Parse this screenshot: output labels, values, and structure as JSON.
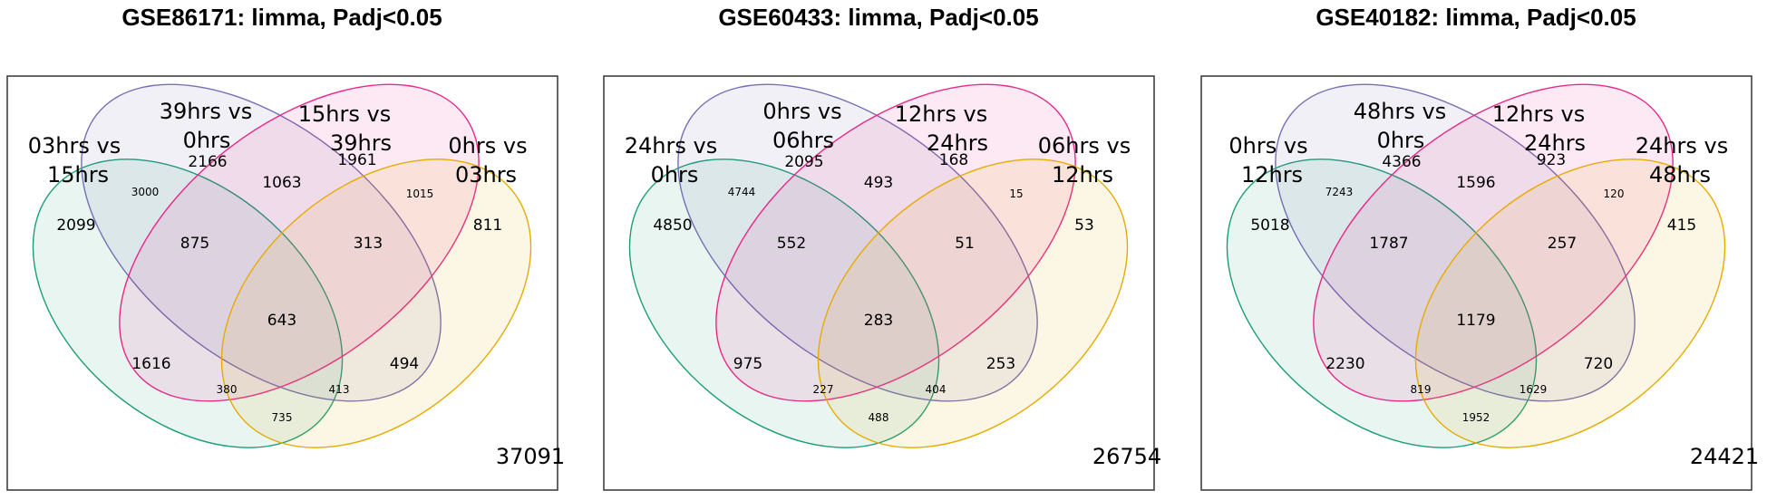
{
  "colors": {
    "set1": "#1b9e77",
    "set2": "#7570b3",
    "set3": "#e7298a",
    "set4": "#e6ab02"
  },
  "panels": [
    {
      "title": "GSE86171: limma, Padj<0.05",
      "labels": {
        "a1": "03hrs vs",
        "a2": "15hrs",
        "b1": "39hrs vs",
        "b2": "0hrs",
        "c1": "15hrs vs",
        "c2": "39hrs",
        "d1": "0hrs vs",
        "d2": "03hrs"
      },
      "counts": {
        "A": "2099",
        "AB": "3000",
        "B": "2166",
        "BC": "1063",
        "C": "1961",
        "CD": "1015",
        "D": "811",
        "ABC": "875",
        "BCD": "313",
        "ABCD": "643",
        "AC": "1616",
        "ACD": "380",
        "ABD": "413",
        "BD": "494",
        "AD": "735"
      },
      "outside": "37091"
    },
    {
      "title": "GSE60433: limma, Padj<0.05",
      "labels": {
        "a1": "24hrs vs",
        "a2": "0hrs",
        "b1": "0hrs vs",
        "b2": "06hrs",
        "c1": "12hrs vs",
        "c2": "24hrs",
        "d1": "06hrs vs",
        "d2": "12hrs"
      },
      "counts": {
        "A": "4850",
        "AB": "4744",
        "B": "2095",
        "BC": "493",
        "C": "168",
        "CD": "15",
        "D": "53",
        "ABC": "552",
        "BCD": "51",
        "ABCD": "283",
        "AC": "975",
        "ACD": "227",
        "ABD": "404",
        "BD": "253",
        "AD": "488"
      },
      "outside": "26754"
    },
    {
      "title": "GSE40182: limma, Padj<0.05",
      "labels": {
        "a1": "0hrs vs",
        "a2": "12hrs",
        "b1": "48hrs vs",
        "b2": "0hrs",
        "c1": "12hrs vs",
        "c2": "24hrs",
        "d1": "24hrs vs",
        "d2": "48hrs"
      },
      "counts": {
        "A": "5018",
        "AB": "7243",
        "B": "4366",
        "BC": "1596",
        "C": "923",
        "CD": "120",
        "D": "415",
        "ABC": "1787",
        "BCD": "257",
        "ABCD": "1179",
        "AC": "2230",
        "ACD": "819",
        "ABD": "1629",
        "BD": "720",
        "AD": "1952"
      },
      "outside": "24421"
    }
  ]
}
